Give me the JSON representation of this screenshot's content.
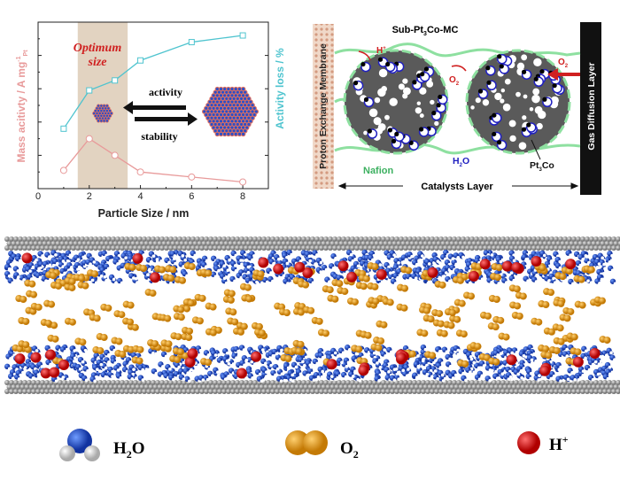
{
  "chart_data": {
    "type": "line",
    "xlabel": "Particle Size / nm",
    "ylabel_left": "Mass acitivty / A mg",
    "ylabel_left_sup": "-1",
    "ylabel_left_sub": "Pt",
    "ylabel_right": "Activity loss / %",
    "xlim": [
      0,
      9
    ],
    "ylim": [
      0,
      1
    ],
    "x_ticks": [
      "0",
      "2",
      "4",
      "6",
      "8"
    ],
    "grid": false,
    "series": [
      {
        "name": "Mass acitivty",
        "axis": "left",
        "color": "#e89a9a",
        "marker": "circle",
        "x": [
          1,
          2,
          3,
          4,
          6,
          8
        ],
        "y": [
          0.11,
          0.3,
          0.2,
          0.1,
          0.07,
          0.04
        ]
      },
      {
        "name": "Activity loss",
        "axis": "right",
        "color": "#4fc4cf",
        "marker": "square",
        "x": [
          1,
          2,
          3,
          4,
          6,
          8
        ],
        "y": [
          0.36,
          0.59,
          0.65,
          0.77,
          0.88,
          0.92
        ]
      }
    ],
    "band": {
      "x": [
        1.55,
        3.5
      ],
      "label_line1": "Optimum",
      "label_line2": "size",
      "color": "#e2d3c1"
    },
    "annotations": {
      "activity": "activity",
      "stability": "stability"
    }
  },
  "schematic": {
    "title": "Sub-Pt",
    "title_sub": "3",
    "title_rest": "Co-MC",
    "membrane": "Proton Exchange Membrane",
    "gdl": "Gas Diffusion Layer",
    "catalyst_layer": "Catalysts Layer",
    "nafion": "Nafion",
    "h_plus": "H",
    "o2": "O",
    "water": "H",
    "water_rest": "O",
    "pt3co": "Pt",
    "pt3co_rest": "Co",
    "sub2": "2",
    "sub3": "3",
    "plus": "+"
  },
  "legend": [
    {
      "label": "H",
      "sub": "2",
      "rest": "O",
      "icon": "water-molecule"
    },
    {
      "label": "O",
      "sub": "2",
      "rest": "",
      "icon": "oxygen-molecule"
    },
    {
      "label": "H",
      "sup": "+",
      "rest": "",
      "icon": "proton"
    }
  ],
  "colors": {
    "water": "#2f5fd0",
    "oxygen": "#e8a020",
    "proton": "#e01818",
    "plate": "#a8a8a8"
  }
}
